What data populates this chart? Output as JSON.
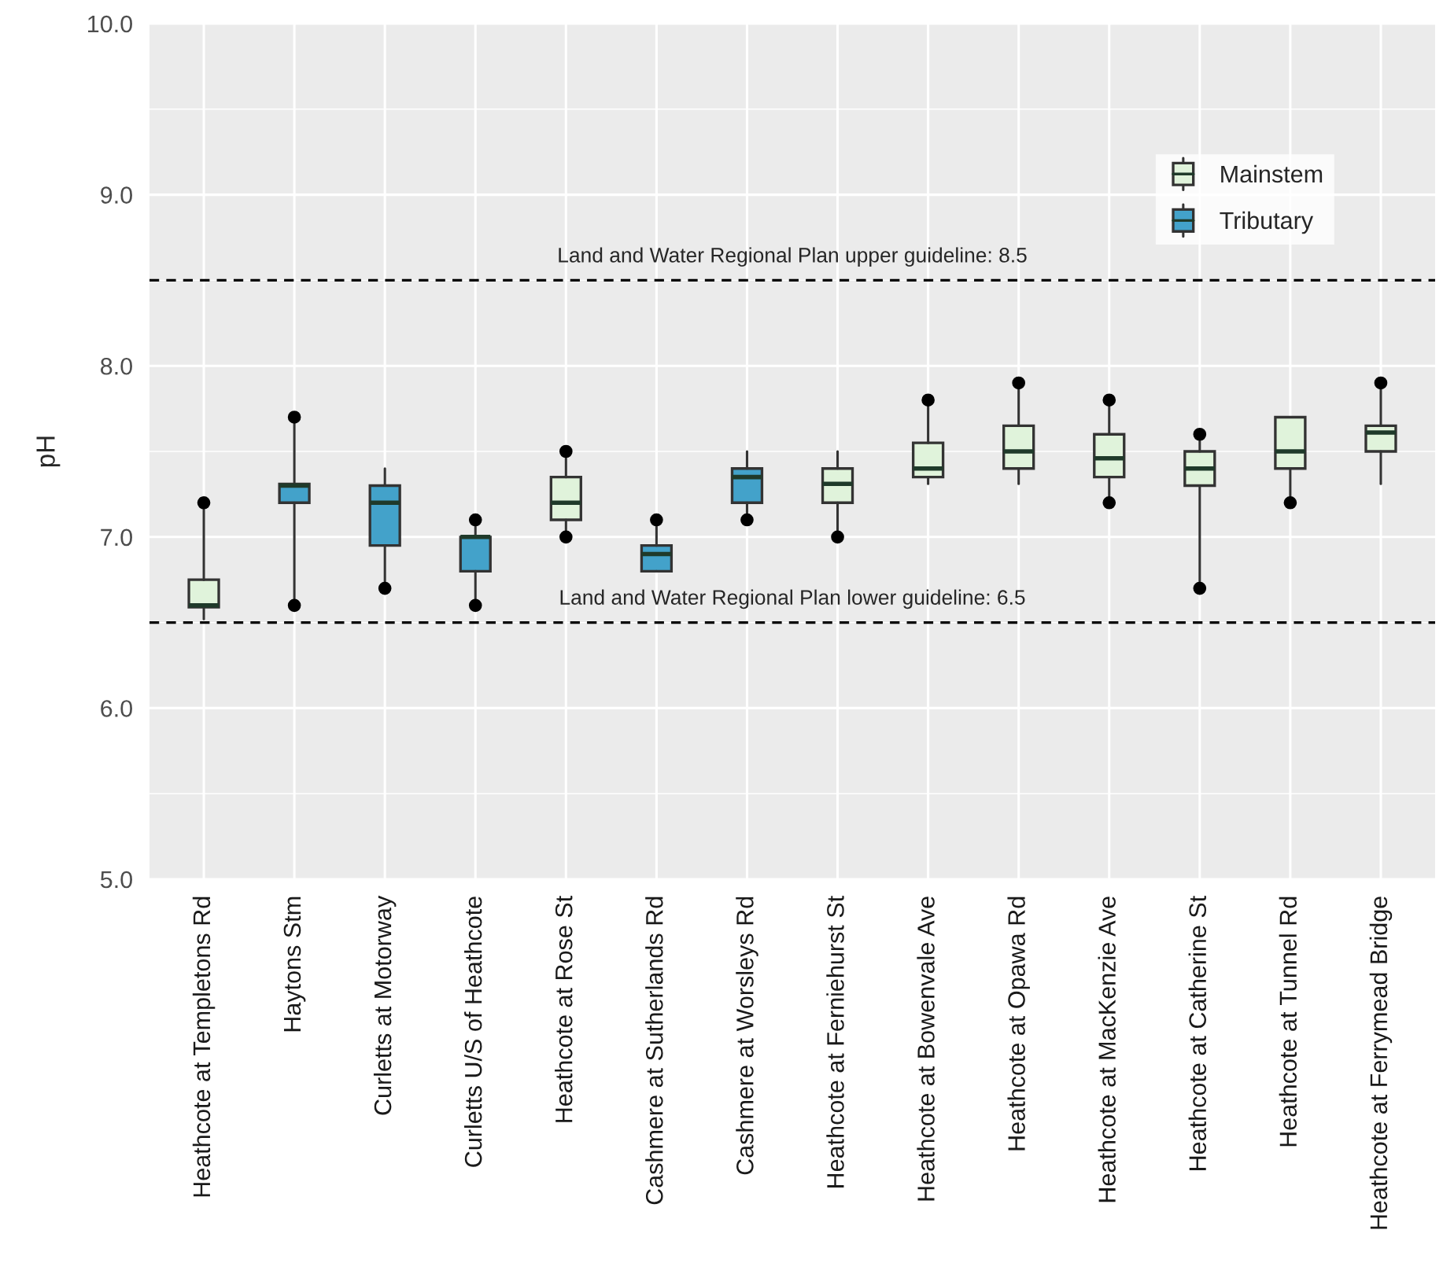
{
  "chart_data": {
    "type": "box",
    "ylabel": "pH",
    "categories": [
      "Heathcote at Templetons Rd",
      "Haytons Stm",
      "Curletts at Motorway",
      "Curletts U/S of Heathcote",
      "Heathcote at Rose St",
      "Cashmere at Sutherlands Rd",
      "Cashmere at Worsleys Rd",
      "Heathcote at Ferniehurst St",
      "Heathcote at Bowenvale Ave",
      "Heathcote at Opawa Rd",
      "Heathcote at MacKenzie Ave",
      "Heathcote at Catherine St",
      "Heathcote at Tunnel Rd",
      "Heathcote at Ferrymead Bridge"
    ],
    "series": [
      {
        "name": "Mainstem",
        "color": "#e0f3db",
        "boxes": [
          {
            "low": 6.52,
            "q1": 6.59,
            "median": 6.6,
            "q3": 6.75,
            "high": 7.2,
            "outliers": [
              7.2
            ]
          },
          null,
          null,
          null,
          {
            "low": 7.0,
            "q1": 7.1,
            "median": 7.2,
            "q3": 7.35,
            "high": 7.5,
            "outliers": [
              7.5,
              7.0
            ]
          },
          null,
          null,
          {
            "low": 7.0,
            "q1": 7.2,
            "median": 7.31,
            "q3": 7.4,
            "high": 7.5,
            "outliers": [
              7.0
            ]
          },
          {
            "low": 7.31,
            "q1": 7.35,
            "median": 7.4,
            "q3": 7.55,
            "high": 7.8,
            "outliers": [
              7.8
            ]
          },
          {
            "low": 7.31,
            "q1": 7.4,
            "median": 7.5,
            "q3": 7.65,
            "high": 7.9,
            "outliers": [
              7.9
            ]
          },
          {
            "low": 7.2,
            "q1": 7.35,
            "median": 7.46,
            "q3": 7.6,
            "high": 7.8,
            "outliers": [
              7.8,
              7.2
            ]
          },
          {
            "low": 6.7,
            "q1": 7.3,
            "median": 7.4,
            "q3": 7.5,
            "high": 7.6,
            "outliers": [
              7.6,
              6.7
            ]
          },
          {
            "low": 7.2,
            "q1": 7.4,
            "median": 7.5,
            "q3": 7.7,
            "high": 7.7,
            "outliers": [
              7.2
            ]
          },
          {
            "low": 7.31,
            "q1": 7.5,
            "median": 7.61,
            "q3": 7.65,
            "high": 7.9,
            "outliers": [
              7.9
            ]
          }
        ]
      },
      {
        "name": "Tributary",
        "color": "#43a2ca",
        "boxes": [
          null,
          {
            "low": 6.6,
            "q1": 7.2,
            "median": 7.3,
            "q3": 7.31,
            "high": 7.7,
            "outliers": [
              7.7,
              6.6
            ]
          },
          {
            "low": 6.7,
            "q1": 6.95,
            "median": 7.2,
            "q3": 7.3,
            "high": 7.4,
            "outliers": [
              6.7
            ]
          },
          {
            "low": 6.6,
            "q1": 6.8,
            "median": 7.0,
            "q3": 7.0,
            "high": 7.1,
            "outliers": [
              7.1,
              6.6
            ]
          },
          null,
          {
            "low": 6.8,
            "q1": 6.8,
            "median": 6.9,
            "q3": 6.95,
            "high": 7.1,
            "outliers": [
              7.1
            ]
          },
          {
            "low": 7.1,
            "q1": 7.2,
            "median": 7.35,
            "q3": 7.4,
            "high": 7.5,
            "outliers": [
              7.1
            ]
          },
          null,
          null,
          null,
          null,
          null,
          null,
          null
        ]
      }
    ],
    "ylim": [
      5,
      10
    ],
    "yticks": [
      {
        "value": 5,
        "label": "5.0"
      },
      {
        "value": 6,
        "label": "6.0"
      },
      {
        "value": 7,
        "label": "7.0"
      },
      {
        "value": 8,
        "label": "8.0"
      },
      {
        "value": 9,
        "label": "9.0"
      },
      {
        "value": 10,
        "label": "10.0"
      }
    ],
    "ref_lines": [
      {
        "axis": "y",
        "value": 8.5,
        "label": "Land and Water Regional Plan upper guideline: 8.5",
        "color": "#000000",
        "line_style": "dashed"
      },
      {
        "axis": "y",
        "value": 6.5,
        "label": "Land and Water Regional Plan lower guideline: 6.5",
        "color": "#000000",
        "line_style": "dashed"
      }
    ],
    "grid": true,
    "legend": "top right"
  }
}
